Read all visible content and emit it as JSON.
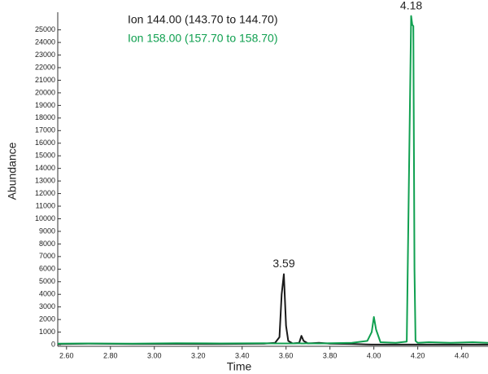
{
  "chart_data": {
    "type": "line",
    "xlabel": "Time",
    "ylabel": "Abundance",
    "x": [
      2.56,
      2.7,
      2.9,
      3.1,
      3.3,
      3.5,
      3.55,
      3.57,
      3.58,
      3.59,
      3.6,
      3.61,
      3.63,
      3.66,
      3.67,
      3.68,
      3.7,
      3.75,
      3.8,
      3.9,
      3.97,
      3.99,
      4.0,
      4.01,
      4.03,
      4.1,
      4.15,
      4.17,
      4.175,
      4.18,
      4.185,
      4.19,
      4.2,
      4.25,
      4.35,
      4.45,
      4.52
    ],
    "series": [
      {
        "name": "Ion 144.00 (143.70 to 144.70)",
        "color": "#1a1a1a",
        "values": [
          50,
          80,
          60,
          70,
          60,
          80,
          150,
          600,
          4000,
          5600,
          1500,
          300,
          100,
          150,
          700,
          300,
          100,
          150,
          80,
          60,
          20,
          10,
          10,
          10,
          10,
          10,
          10,
          10,
          10,
          10,
          10,
          10,
          10,
          10,
          10,
          10,
          10
        ]
      },
      {
        "name": "Ion 158.00 (157.70 to 158.70)",
        "color": "#10a050",
        "values": [
          80,
          100,
          90,
          120,
          100,
          110,
          100,
          100,
          100,
          100,
          100,
          100,
          100,
          120,
          100,
          100,
          110,
          100,
          120,
          150,
          300,
          1000,
          2200,
          1200,
          200,
          150,
          250,
          26100,
          25400,
          25300,
          6000,
          300,
          150,
          200,
          150,
          200,
          150
        ]
      }
    ],
    "annotations": [
      "3.59",
      "4.18"
    ],
    "xlim": [
      2.56,
      4.52
    ],
    "xticks": [
      {
        "value": 2.6,
        "label": "2.60"
      },
      {
        "value": 2.8,
        "label": "2.80"
      },
      {
        "value": 3.0,
        "label": "3.00"
      },
      {
        "value": 3.2,
        "label": "3.20"
      },
      {
        "value": 3.4,
        "label": "3.40"
      },
      {
        "value": 3.6,
        "label": "3.60"
      },
      {
        "value": 3.8,
        "label": "3.80"
      },
      {
        "value": 4.0,
        "label": "4.00"
      },
      {
        "value": 4.2,
        "label": "4.20"
      },
      {
        "value": 4.4,
        "label": "4.40"
      }
    ],
    "ylim": [
      -450,
      26400
    ],
    "yticks": [
      0,
      1000,
      2000,
      3000,
      4000,
      5000,
      6000,
      7000,
      8000,
      9000,
      10000,
      11000,
      12000,
      13000,
      14000,
      15000,
      16000,
      17000,
      18000,
      19000,
      20000,
      21000,
      22000,
      23000,
      24000,
      25000
    ]
  }
}
